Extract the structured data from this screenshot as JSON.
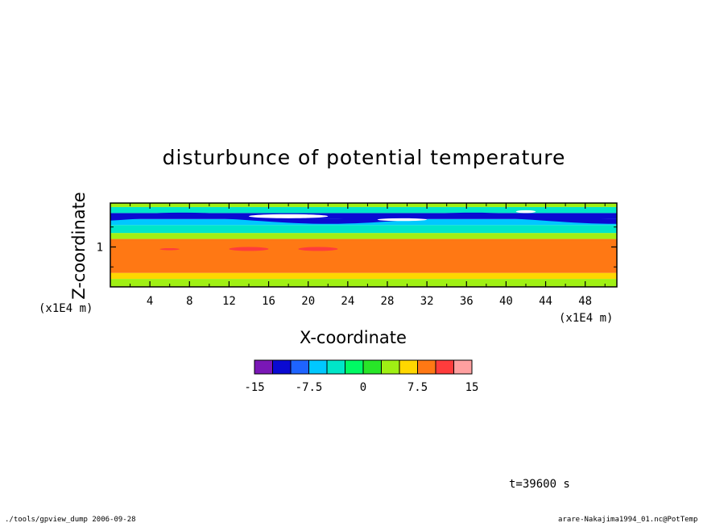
{
  "chart_data": {
    "type": "heatmap",
    "title": "disturbunce of potential temperature",
    "xlabel": "X-coordinate",
    "ylabel": "Z-coordinate",
    "x_unit": "(x1E4 m)",
    "y_unit": "(x1E4 m)",
    "xlim": [
      0,
      51.2
    ],
    "ylim": [
      0,
      2.1
    ],
    "x_ticks": [
      4,
      8,
      12,
      16,
      20,
      24,
      28,
      32,
      36,
      40,
      44,
      48
    ],
    "y_ticks": [
      1
    ],
    "colorbar": {
      "levels": [
        -15,
        -12.5,
        -10,
        -7.5,
        -5,
        -2.5,
        0,
        2.5,
        5,
        7.5,
        10,
        12.5,
        15
      ],
      "labels": [
        "-15",
        "-7.5",
        "0",
        "7.5",
        "15"
      ],
      "label_values": [
        -15,
        -7.5,
        0,
        7.5,
        15
      ],
      "colors": [
        "#7a17b6",
        "#0a0ad2",
        "#1e64ff",
        "#00c8ff",
        "#00e6c8",
        "#00fa64",
        "#28e628",
        "#a0f014",
        "#ffd700",
        "#ff7814",
        "#ff3c3c",
        "#ffa0a0"
      ]
    },
    "field": {
      "z_bands": [
        {
          "z": [
            0.0,
            0.2
          ],
          "value": 3.5
        },
        {
          "z": [
            0.2,
            0.35
          ],
          "value": 5.5
        },
        {
          "z": [
            0.35,
            1.2
          ],
          "value": 8.5
        },
        {
          "z": [
            1.2,
            1.35
          ],
          "value": 4.5
        },
        {
          "z": [
            1.35,
            1.55
          ],
          "value": -3.5
        },
        {
          "z": [
            1.55,
            1.7
          ],
          "value": -6
        },
        {
          "z": [
            1.7,
            1.85
          ],
          "value": -11
        },
        {
          "z": [
            1.85,
            2.0
          ],
          "value": -3.5
        },
        {
          "z": [
            2.0,
            2.1
          ],
          "value": 3
        }
      ],
      "features": [
        {
          "x": [
            12,
            16
          ],
          "z": [
            0.9,
            1.0
          ],
          "value": 11
        },
        {
          "x": [
            19,
            23
          ],
          "z": [
            0.9,
            1.0
          ],
          "value": 11
        },
        {
          "x": [
            5,
            7
          ],
          "z": [
            0.92,
            0.97
          ],
          "value": 11
        },
        {
          "x": [
            14,
            22
          ],
          "z": [
            1.72,
            1.82
          ],
          "value": -20
        },
        {
          "x": [
            27,
            32
          ],
          "z": [
            1.65,
            1.72
          ],
          "value": -20
        },
        {
          "x": [
            41,
            43
          ],
          "z": [
            1.85,
            1.92
          ],
          "value": -20
        }
      ]
    }
  },
  "annotations": {
    "time": "t=39600 s",
    "footer_left": "./tools/gpview_dump  2006-09-28",
    "footer_right": "arare-Nakajima1994_01.nc@PotTemp"
  }
}
